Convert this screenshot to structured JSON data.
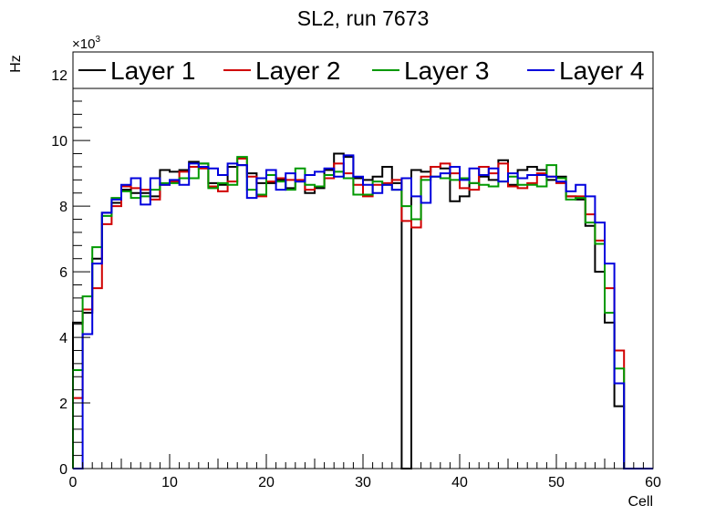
{
  "chart_data": {
    "type": "line",
    "style": "step-histogram",
    "title": "SL2, run 7673",
    "xlabel": "Cell",
    "ylabel": "Hz",
    "y_multiplier_label": "×10",
    "y_multiplier_exponent": "3",
    "xlim": [
      0,
      60
    ],
    "ylim": [
      0,
      12.7
    ],
    "y_unit_scale": 1000,
    "x_ticks": [
      "0",
      "10",
      "20",
      "30",
      "40",
      "50",
      "60"
    ],
    "y_ticks": [
      "0",
      "2",
      "4",
      "6",
      "8",
      "10",
      "12"
    ],
    "grid": false,
    "legend_position": "top",
    "bin_edges_start": 0,
    "bin_width": 1,
    "series": [
      {
        "name": "Layer 1",
        "color": "#000000",
        "values": [
          4.45,
          4.75,
          6.4,
          7.8,
          8.1,
          8.5,
          8.4,
          8.4,
          8.3,
          9.1,
          9.05,
          9.1,
          9.35,
          9.3,
          8.7,
          8.65,
          9.2,
          9.25,
          9.0,
          8.7,
          8.7,
          8.8,
          8.55,
          8.75,
          8.4,
          8.55,
          9.1,
          9.6,
          9.5,
          8.85,
          8.8,
          8.9,
          9.2,
          8.7,
          0,
          9.1,
          9.05,
          9.2,
          9.15,
          8.15,
          8.3,
          8.7,
          8.9,
          8.8,
          9.4,
          8.65,
          9.1,
          9.2,
          9.1,
          8.8,
          8.9,
          8.3,
          8.2,
          7.4,
          6.0,
          4.45,
          1.9,
          0,
          0,
          0
        ]
      },
      {
        "name": "Layer 2",
        "color": "#d00000",
        "values": [
          2.15,
          4.85,
          5.5,
          7.45,
          8.0,
          8.6,
          8.55,
          8.5,
          8.2,
          8.65,
          8.75,
          9.05,
          9.2,
          9.15,
          8.6,
          8.45,
          8.75,
          9.45,
          8.9,
          8.3,
          8.75,
          8.85,
          8.8,
          8.8,
          8.5,
          8.6,
          8.85,
          9.3,
          9.0,
          8.65,
          8.3,
          8.65,
          8.7,
          8.8,
          7.55,
          7.35,
          8.9,
          9.2,
          9.3,
          9.0,
          8.55,
          8.5,
          9.2,
          9.0,
          9.3,
          8.6,
          8.55,
          8.7,
          9.0,
          8.9,
          8.7,
          8.3,
          8.3,
          7.75,
          6.95,
          5.5,
          3.6,
          0,
          0,
          0
        ]
      },
      {
        "name": "Layer 3",
        "color": "#009900",
        "values": [
          3.0,
          5.25,
          6.75,
          7.7,
          8.25,
          8.45,
          8.25,
          8.3,
          8.5,
          8.7,
          8.7,
          8.85,
          8.85,
          9.3,
          8.55,
          8.7,
          8.65,
          9.5,
          8.5,
          8.35,
          8.95,
          8.75,
          8.5,
          9.15,
          8.65,
          8.6,
          8.95,
          9.05,
          8.85,
          8.35,
          8.35,
          8.75,
          8.65,
          8.5,
          8.0,
          7.6,
          8.8,
          8.9,
          8.85,
          8.8,
          8.85,
          8.7,
          8.65,
          8.6,
          8.75,
          8.9,
          8.65,
          8.65,
          8.6,
          9.25,
          8.85,
          8.2,
          8.25,
          7.5,
          6.85,
          4.75,
          3.05,
          0,
          0,
          0
        ]
      },
      {
        "name": "Layer 4",
        "color": "#0000dd",
        "values": [
          0,
          4.1,
          6.25,
          7.8,
          8.2,
          8.65,
          8.85,
          8.05,
          8.85,
          8.65,
          8.8,
          8.65,
          9.3,
          9.2,
          9.15,
          8.95,
          9.3,
          9.25,
          8.25,
          8.85,
          9.1,
          8.5,
          9.0,
          8.75,
          8.95,
          9.05,
          9.15,
          8.9,
          9.55,
          8.9,
          8.65,
          8.4,
          8.65,
          8.5,
          8.85,
          8.3,
          8.1,
          8.9,
          9.0,
          9.2,
          8.8,
          9.15,
          8.95,
          9.15,
          8.75,
          9.0,
          8.85,
          8.95,
          8.95,
          8.9,
          8.75,
          8.45,
          8.65,
          8.3,
          7.5,
          6.25,
          2.6,
          0,
          0,
          0
        ]
      }
    ]
  }
}
